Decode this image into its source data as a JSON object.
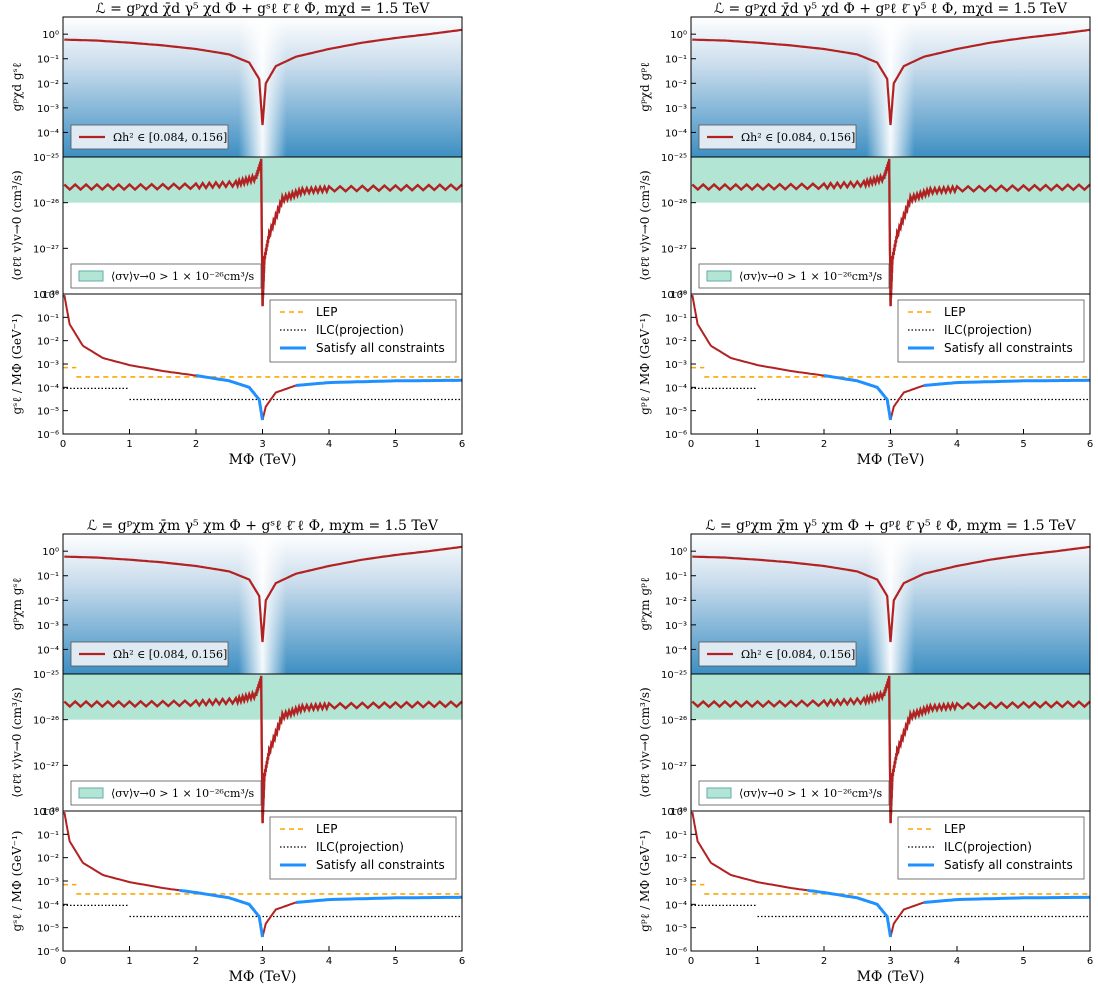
{
  "chart_data": [
    {
      "type": "line",
      "title": "ℒ = gᵖχd χ̄d γ⁵ χd Φ + gˢℓ ℓ̄ ℓ Φ, mχd = 1.5 TeV",
      "title_math": "ℒ = g",
      "title_rest": ", m",
      "title_tev": "= 1.5 TeV",
      "panels": {
        "top": {
          "ylabel": "gᵖχd gˢℓ",
          "yscale": "log",
          "ylim": [
            1e-05,
            5
          ],
          "yticks": [
            "10⁰",
            "10⁻¹",
            "10⁻²",
            "10⁻³",
            "10⁻⁴"
          ],
          "background": "density",
          "series": [
            {
              "name": "Ωh² ∈ [0.084, 0.156]",
              "color": "#b22222",
              "x": [
                0.02,
                0.5,
                1.0,
                1.5,
                2.0,
                2.5,
                2.8,
                2.95,
                3.0,
                3.05,
                3.2,
                3.5,
                4.0,
                4.5,
                5.0,
                5.5,
                6.0
              ],
              "y": [
                0.6,
                0.55,
                0.45,
                0.35,
                0.25,
                0.15,
                0.07,
                0.015,
                0.0002,
                0.01,
                0.05,
                0.12,
                0.25,
                0.45,
                0.7,
                1.0,
                1.5
              ]
            }
          ],
          "legend": "lower-left"
        },
        "middle": {
          "ylabel": "⟨σℓ̄ℓ v⟩v→0 (cm³/s)",
          "yscale": "log",
          "ylim": [
            1e-28,
            1e-25
          ],
          "yticks": [
            "10⁻²⁵",
            "10⁻²⁶",
            "10⁻²⁷",
            "10⁻²⁸"
          ],
          "band": [
            1e-26,
            1e-25
          ],
          "band_label": "⟨σv⟩v→0 > 1 × 10⁻²⁶cm³/s",
          "series": [
            {
              "name": "relic",
              "color": "#b22222",
              "x": [
                0.02,
                1.0,
                2.0,
                2.6,
                2.9,
                2.98,
                3.0,
                3.03,
                3.1,
                3.3,
                3.6,
                4.0,
                5.0,
                6.0
              ],
              "y": [
                2.2e-26,
                2.2e-26,
                2.3e-26,
                2.6e-26,
                3.5e-26,
                8e-26,
                5e-29,
                6e-28,
                2e-27,
                1.2e-26,
                1.8e-26,
                2e-26,
                2.1e-26,
                2.2e-26
              ]
            }
          ],
          "legend": "lower-left"
        },
        "bottom": {
          "ylabel": "gˢℓ / MΦ (GeV⁻¹)",
          "xlabel": "MΦ (TeV)",
          "yscale": "log",
          "ylim": [
            1e-06,
            1
          ],
          "yticks": [
            "10⁰",
            "10⁻¹",
            "10⁻²",
            "10⁻³",
            "10⁻⁴",
            "10⁻⁵",
            "10⁻⁶"
          ],
          "xticks": [
            "0",
            "1",
            "2",
            "3",
            "4",
            "5",
            "6"
          ],
          "xlim": [
            0,
            6
          ],
          "series": [
            {
              "name": "LEP",
              "color": "#ffa500",
              "style": "dashed",
              "x": [
                0,
                0.2
              ],
              "y": [
                0.0007,
                0.0007
              ],
              "x2": [
                0.2,
                6
              ],
              "y2": [
                0.00028,
                0.00028
              ]
            },
            {
              "name": "ILC(projection)",
              "color": "#000000",
              "style": "dotted",
              "x": [
                0,
                1
              ],
              "y": [
                9e-05,
                9e-05
              ],
              "x2": [
                1,
                6
              ],
              "y2": [
                3e-05,
                3e-05
              ]
            },
            {
              "name": "Satisfy all constraints",
              "color": "#1e90ff"
            },
            {
              "name": "relic",
              "color": "#b22222",
              "x": [
                0.02,
                0.1,
                0.3,
                0.6,
                1.0,
                1.5,
                2.0,
                2.5,
                2.8,
                2.95,
                3.0,
                3.05,
                3.2,
                3.5,
                4.0,
                5.0,
                6.0
              ],
              "y": [
                0.9,
                0.05,
                0.006,
                0.0018,
                0.0009,
                0.0005,
                0.00032,
                0.00019,
                0.0001,
                3e-05,
                4e-06,
                1.5e-05,
                6e-05,
                0.00012,
                0.00016,
                0.00019,
                0.0002
              ]
            }
          ],
          "blue_from": 2.0,
          "blue_to": 6.0,
          "legend": "upper-right"
        }
      }
    },
    {
      "type": "line",
      "title": "ℒ = gᵖχd χ̄d γ⁵ χd Φ + gᵖℓ ℓ̄ γ⁵ ℓ Φ, mχd = 1.5 TeV",
      "panels_like": 0,
      "coupling_top": "gᵖχd gᵖℓ",
      "coupling_bottom": "gᵖℓ / MΦ (GeV⁻¹)",
      "blue_from": 2.0
    },
    {
      "type": "line",
      "title": "ℒ = gᵖχm χ̄m γ⁵ χm Φ + gˢℓ ℓ̄ ℓ Φ, mχm = 1.5 TeV",
      "panels_like": 0,
      "coupling_top": "gᵖχm gˢℓ",
      "coupling_bottom": "gˢℓ / MΦ (GeV⁻¹)",
      "blue_from": 1.75
    },
    {
      "type": "line",
      "title": "ℒ = gᵖχm χ̄m γ⁵ χm Φ + gᵖℓ ℓ̄ γ⁵ ℓ Φ, mχm = 1.5 TeV",
      "panels_like": 0,
      "coupling_top": "gᵖχm gᵖℓ",
      "coupling_bottom": "gᵖℓ / MΦ (GeV⁻¹)",
      "blue_from": 1.75
    }
  ],
  "colors": {
    "relic": "#b22222",
    "lep": "#ffa500",
    "ilc": "#000000",
    "allowed": "#1e90ff",
    "band": "#b2e5d4",
    "density": "#4f9ccb"
  }
}
